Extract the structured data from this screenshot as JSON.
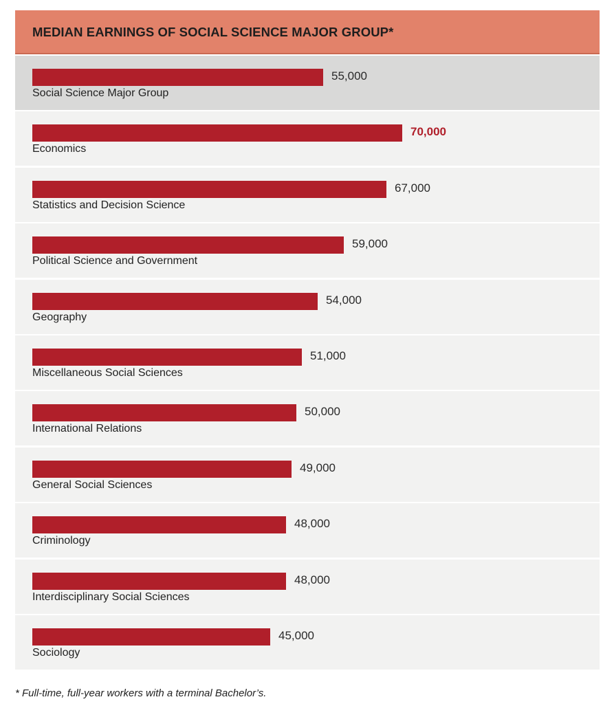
{
  "header": {
    "title": "MEDIAN EARNINGS OF SOCIAL SCIENCE MAJOR GROUP*"
  },
  "footnote": "* Full-time, full-year workers with a terminal Bachelor’s.",
  "colors": {
    "header_bg": "#e2826a",
    "bar": "#b01f2a",
    "row_bg": "#f2f2f1",
    "highlight_row_bg": "#d9d9d8",
    "emphasis_value": "#b01f2a"
  },
  "chart_data": {
    "type": "bar",
    "orientation": "horizontal",
    "title": "MEDIAN EARNINGS OF SOCIAL SCIENCE MAJOR GROUP*",
    "categories": [
      "Social Science Major Group",
      "Economics",
      "Statistics and Decision Science",
      "Political Science and Government",
      "Geography",
      "Miscellaneous Social Sciences",
      "International Relations",
      "General Social Sciences",
      "Criminology",
      "Interdisciplinary Social Sciences",
      "Sociology"
    ],
    "values": [
      55000,
      70000,
      67000,
      59000,
      54000,
      51000,
      50000,
      49000,
      48000,
      48000,
      45000
    ],
    "value_labels": [
      "55,000",
      "70,000",
      "67,000",
      "59,000",
      "54,000",
      "51,000",
      "50,000",
      "49,000",
      "48,000",
      "48,000",
      "45,000"
    ],
    "highlighted_category": "Social Science Major Group",
    "emphasized_category": "Economics",
    "xlim": [
      0,
      70000
    ],
    "grid": false,
    "legend": "none"
  }
}
